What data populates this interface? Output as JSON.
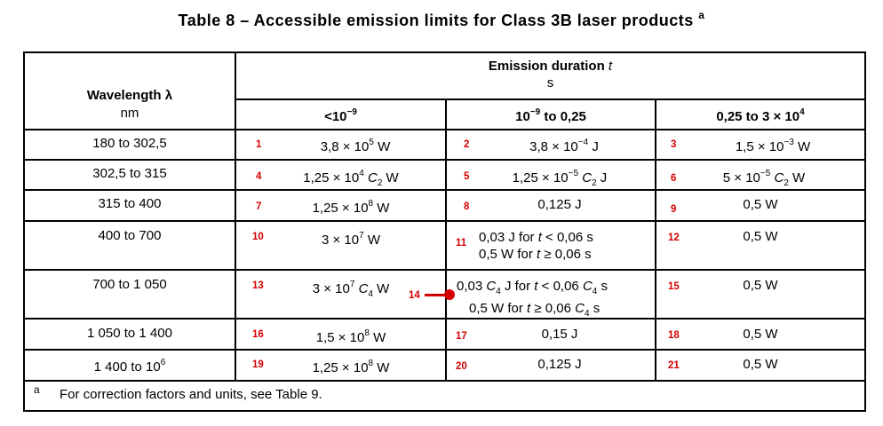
{
  "title": {
    "text": "Table 8 – Accessible emission limits for Class 3B laser products",
    "footnote_mark": "a"
  },
  "header": {
    "wavelength_label": "Wavelength λ",
    "wavelength_unit": "nm",
    "emission_label": "Emission duration",
    "emission_var": "t",
    "emission_unit": "s",
    "col1": {
      "prefix": "<10",
      "exp": "−9"
    },
    "col2": {
      "base": "10",
      "exp": "−9",
      "suffix": " to 0,25"
    },
    "col3": {
      "prefix": "0,25 to 3 × 10",
      "exp": "4"
    }
  },
  "rows": [
    {
      "wl": "180 to 302,5",
      "n1": "1",
      "n2": "2",
      "n3": "3"
    },
    {
      "wl": "302,5 to 315",
      "n1": "4",
      "n2": "5",
      "n3": "6"
    },
    {
      "wl": "315 to 400",
      "n1": "7",
      "n2": "8",
      "n3": "9"
    },
    {
      "wl": "400 to 700",
      "n1": "10",
      "n2": "11",
      "n3": "12"
    },
    {
      "wl": "700 to 1 050",
      "n1": "13",
      "n2": "14",
      "n3": "15"
    },
    {
      "wl": "1 050 to 1 400",
      "n1": "16",
      "n2": "17",
      "n3": "18"
    },
    {
      "wl_base": "1 400 to 10",
      "wl_exp": "6",
      "n1": "19",
      "n2": "20",
      "n3": "21"
    }
  ],
  "values": {
    "r1c1": {
      "a": "3,8 × 10",
      "exp": "5",
      "b": " W"
    },
    "r1c2": {
      "a": "3,8 × 10",
      "exp": "−4",
      "b": " J"
    },
    "r1c3": {
      "a": "1,5 × 10",
      "exp": "−3",
      "b": " W"
    },
    "r2c1": {
      "a": "1,25 × 10",
      "exp": "4",
      "var": "C",
      "sub": "2",
      "b": " W"
    },
    "r2c2": {
      "a": "1,25 × 10",
      "exp": "−5",
      "var": "C",
      "sub": "2",
      "b": " J"
    },
    "r2c3": {
      "a": "5 × 10",
      "exp": "−5",
      "var": "C",
      "sub": "2",
      "b": " W"
    },
    "r3c1": {
      "a": "1,25 × 10",
      "exp": "8",
      "b": " W"
    },
    "r3c2": {
      "text": "0,125 J"
    },
    "r3c3": {
      "text": "0,5 W"
    },
    "r4c1": {
      "a": "3 × 10",
      "exp": "7",
      "b": " W"
    },
    "r4c2": {
      "l1a": "0,03 J for ",
      "l1v": "t",
      "l1b": " < 0,06 s",
      "l2a": "0,5 W for ",
      "l2v": "t",
      "l2b": " ≥ 0,06 s"
    },
    "r4c3": {
      "text": "0,5 W"
    },
    "r5c1": {
      "a": "3 × 10",
      "exp": "7",
      "var": "C",
      "sub": "4",
      "b": " W"
    },
    "r5c2": {
      "l1a": "0,03 ",
      "l1c": "C",
      "l1s": "4",
      "l1m": " J for ",
      "l1v": "t",
      "l1b": " < 0,06 ",
      "l1c2": "C",
      "l1s2": "4",
      "l1e": " s",
      "l2a": "0,5 W for ",
      "l2v": "t",
      "l2b": " ≥ 0,06 ",
      "l2c": "C",
      "l2s": "4",
      "l2e": " s"
    },
    "r5c3": {
      "text": "0,5 W"
    },
    "r6c1": {
      "a": "1,5 × 10",
      "exp": "8",
      "b": " W"
    },
    "r6c2": {
      "text": "0,15 J"
    },
    "r6c3": {
      "text": "0,5 W"
    },
    "r7c1": {
      "a": "1,25 × 10",
      "exp": "8",
      "b": " W"
    },
    "r7c2": {
      "text": "0,125 J"
    },
    "r7c3": {
      "text": "0,5 W"
    }
  },
  "footnote": {
    "mark": "a",
    "text": "For correction factors and units, see Table 9."
  }
}
